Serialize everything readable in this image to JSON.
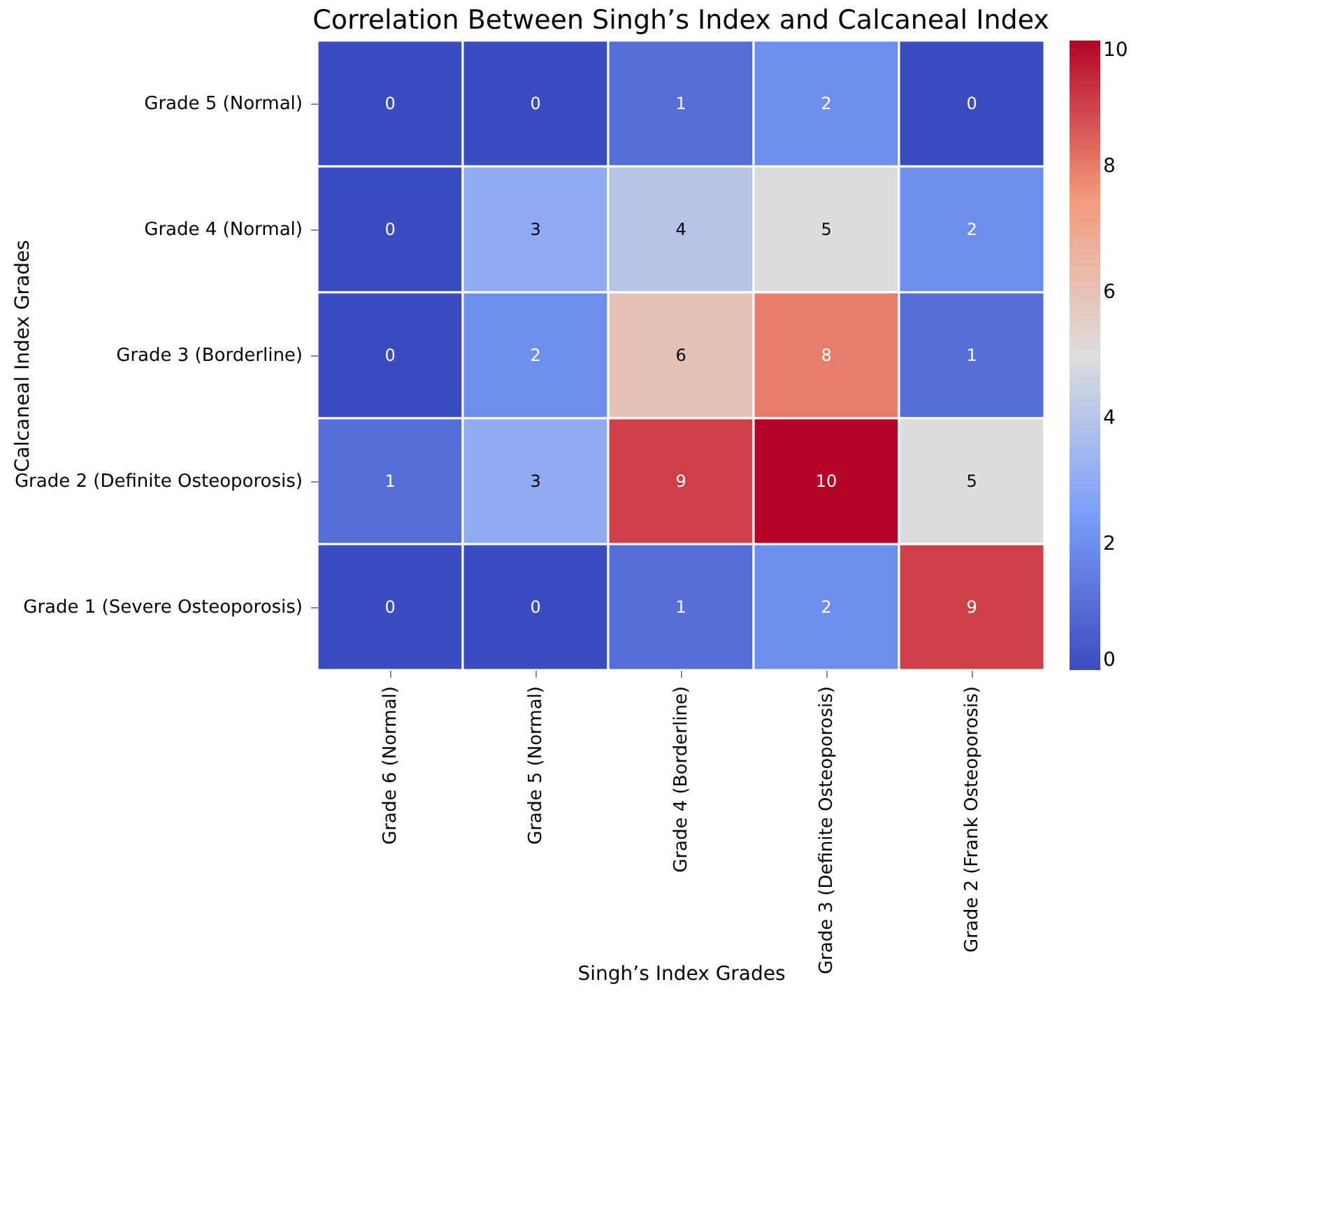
{
  "chart_data": {
    "type": "heatmap",
    "title": "Correlation Between Singh’s Index and Calcaneal Index",
    "xlabel": "Singh’s Index Grades",
    "ylabel": "Calcaneal Index Grades",
    "categories": [
      "Grade 6 (Normal)",
      "Grade 5 (Normal)",
      "Grade 4 (Borderline)",
      "Grade 3 (Definite Osteoporosis)",
      "Grade 2 (Frank Osteoporosis)"
    ],
    "y_categories": [
      "Grade 5  (Normal)",
      "Grade 4  (Normal)",
      "Grade 3  (Borderline)",
      "Grade 2  (Definite Osteoporosis)",
      "Grade 1 (Severe Osteoporosis)"
    ],
    "cells": [
      [
        0,
        0,
        1,
        2,
        0
      ],
      [
        0,
        3,
        4,
        5,
        2
      ],
      [
        0,
        2,
        6,
        8,
        1
      ],
      [
        1,
        3,
        9,
        10,
        5
      ],
      [
        0,
        0,
        1,
        2,
        9
      ]
    ],
    "data_labels": true,
    "clim": [
      0,
      10
    ],
    "cticks": [
      0,
      2,
      4,
      6,
      8,
      10
    ]
  }
}
